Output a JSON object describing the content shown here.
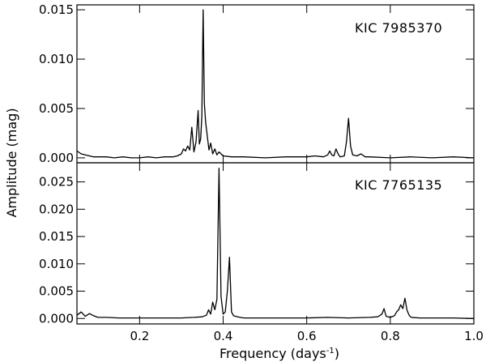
{
  "chart_data": [
    {
      "type": "line",
      "label": "KIC 7985370",
      "xlabel": "Frequency (days",
      "xlabel_superscript": "-1",
      "xlabel_suffix": ")",
      "ylabel": "Amplitude (mag)",
      "xlim": [
        0.05,
        1.0
      ],
      "ylim": [
        -0.0005,
        0.0155
      ],
      "xticks": [
        0.2,
        0.4,
        0.6,
        0.8,
        1.0
      ],
      "xtick_labels": [
        "0.2",
        "0.4",
        "0.6",
        "0.8",
        "1.0"
      ],
      "yticks": [
        0.0,
        0.005,
        0.01,
        0.015
      ],
      "ytick_labels": [
        "0.000",
        "0.005",
        "0.010",
        "0.015"
      ],
      "grid": false,
      "series": [
        {
          "x": [
            0.05,
            0.06,
            0.07,
            0.08,
            0.09,
            0.1,
            0.12,
            0.14,
            0.16,
            0.18,
            0.2,
            0.22,
            0.24,
            0.26,
            0.28,
            0.29,
            0.3,
            0.305,
            0.31,
            0.315,
            0.32,
            0.325,
            0.33,
            0.335,
            0.34,
            0.343,
            0.346,
            0.349,
            0.352,
            0.355,
            0.358,
            0.362,
            0.366,
            0.37,
            0.375,
            0.38,
            0.385,
            0.39,
            0.4,
            0.42,
            0.45,
            0.5,
            0.55,
            0.6,
            0.62,
            0.64,
            0.65,
            0.655,
            0.66,
            0.665,
            0.67,
            0.675,
            0.68,
            0.69,
            0.695,
            0.7,
            0.705,
            0.71,
            0.72,
            0.73,
            0.74,
            0.75,
            0.8,
            0.85,
            0.9,
            0.95,
            1.0
          ],
          "y": [
            0.0007,
            0.0004,
            0.0003,
            0.0002,
            0.0001,
            0.0001,
            0.0001,
            0.0,
            0.0001,
            0.0,
            0.0,
            0.0001,
            0.0,
            0.0001,
            0.0001,
            0.0002,
            0.0004,
            0.0009,
            0.0007,
            0.0012,
            0.0008,
            0.0031,
            0.0006,
            0.0016,
            0.0048,
            0.0014,
            0.0019,
            0.0042,
            0.015,
            0.0055,
            0.0036,
            0.0022,
            0.0008,
            0.0015,
            0.0004,
            0.0009,
            0.0003,
            0.0006,
            0.0002,
            0.0001,
            0.0001,
            0.0,
            0.0001,
            0.0001,
            0.0002,
            0.0001,
            0.0003,
            0.0007,
            0.0003,
            0.0002,
            0.0009,
            0.0004,
            0.0001,
            0.0002,
            0.0016,
            0.004,
            0.0012,
            0.0003,
            0.0002,
            0.0004,
            0.0001,
            0.0001,
            0.0,
            0.0001,
            0.0,
            0.0001,
            0.0
          ]
        }
      ]
    },
    {
      "type": "line",
      "label": "KIC 7765135",
      "xlabel": "Frequency (days",
      "xlabel_superscript": "-1",
      "xlabel_suffix": ")",
      "ylabel": "Amplitude (mag)",
      "xlim": [
        0.05,
        1.0
      ],
      "ylim": [
        -0.001,
        0.0285
      ],
      "xticks": [
        0.2,
        0.4,
        0.6,
        0.8,
        1.0
      ],
      "xtick_labels": [
        "0.2",
        "0.4",
        "0.6",
        "0.8",
        "1.0"
      ],
      "yticks": [
        0.0,
        0.005,
        0.01,
        0.015,
        0.02,
        0.025
      ],
      "ytick_labels": [
        "0.000",
        "0.005",
        "0.010",
        "0.015",
        "0.020",
        "0.025"
      ],
      "grid": false,
      "series": [
        {
          "x": [
            0.05,
            0.06,
            0.07,
            0.08,
            0.09,
            0.1,
            0.12,
            0.15,
            0.2,
            0.25,
            0.3,
            0.33,
            0.35,
            0.36,
            0.365,
            0.37,
            0.375,
            0.38,
            0.385,
            0.39,
            0.395,
            0.4,
            0.405,
            0.41,
            0.415,
            0.42,
            0.425,
            0.43,
            0.44,
            0.45,
            0.5,
            0.55,
            0.6,
            0.65,
            0.7,
            0.75,
            0.77,
            0.78,
            0.785,
            0.79,
            0.8,
            0.81,
            0.815,
            0.82,
            0.825,
            0.83,
            0.835,
            0.84,
            0.845,
            0.85,
            0.87,
            0.9,
            0.95,
            1.0
          ],
          "y": [
            0.0006,
            0.0012,
            0.0004,
            0.0009,
            0.0005,
            0.0002,
            0.0002,
            0.0001,
            0.0001,
            0.0001,
            0.0001,
            0.0002,
            0.0003,
            0.0006,
            0.0016,
            0.0008,
            0.003,
            0.0016,
            0.0035,
            0.0275,
            0.004,
            0.0008,
            0.0012,
            0.005,
            0.0112,
            0.0012,
            0.0005,
            0.0004,
            0.0002,
            0.0001,
            0.0001,
            0.0001,
            0.0001,
            0.0002,
            0.0001,
            0.0002,
            0.0003,
            0.0008,
            0.0018,
            0.0004,
            0.0002,
            0.0005,
            0.0012,
            0.0016,
            0.0025,
            0.0018,
            0.0037,
            0.0015,
            0.0006,
            0.0002,
            0.0001,
            0.0001,
            0.0001,
            0.0
          ]
        }
      ]
    }
  ]
}
